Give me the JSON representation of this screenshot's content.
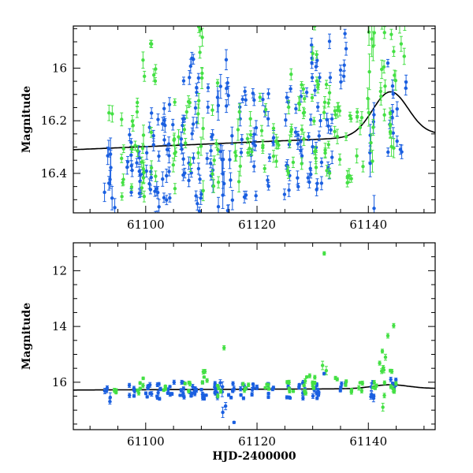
{
  "chart_data": [
    {
      "type": "scatter",
      "panel": "top",
      "title": "",
      "xlabel": "",
      "ylabel": "Magnitude",
      "xlim": [
        61087,
        61152
      ],
      "ylim": [
        16.55,
        15.84
      ],
      "y_inverted": true,
      "x_ticks": [
        61100,
        61120,
        61140
      ],
      "x_tick_labels": [
        "61100",
        "61120",
        "61140"
      ],
      "y_ticks": [
        16.0,
        16.2,
        16.4
      ],
      "y_tick_labels": [
        "16",
        "16.2",
        "16.4"
      ],
      "grid": false,
      "series": [
        {
          "name": "blue",
          "color": "#1a5fe0",
          "clusters": [
            [
              61093.0,
              16.38,
              0.12,
              5,
              0.03
            ],
            [
              61094.0,
              16.42,
              0.16,
              4,
              0.05
            ],
            [
              61097.0,
              16.4,
              0.18,
              8,
              0.02
            ],
            [
              61099.0,
              16.42,
              0.14,
              9,
              0.02
            ],
            [
              61100.5,
              16.35,
              0.3,
              10,
              0.02
            ],
            [
              61102.0,
              16.38,
              0.25,
              10,
              0.02
            ],
            [
              61103.5,
              16.4,
              0.25,
              10,
              0.02
            ],
            [
              61104.5,
              16.3,
              0.2,
              6,
              0.02
            ],
            [
              61106.5,
              16.33,
              0.3,
              10,
              0.02
            ],
            [
              61108.0,
              16.2,
              0.25,
              10,
              0.02
            ],
            [
              61109.5,
              16.3,
              0.3,
              12,
              0.02
            ],
            [
              61111.5,
              16.3,
              0.25,
              10,
              0.02
            ],
            [
              61113.5,
              16.35,
              0.3,
              10,
              0.04
            ],
            [
              61115.0,
              16.3,
              0.35,
              12,
              0.03
            ],
            [
              61117.5,
              16.33,
              0.25,
              9,
              0.02
            ],
            [
              61119.5,
              16.3,
              0.25,
              9,
              0.02
            ],
            [
              61121.5,
              16.1,
              0.1,
              4,
              0.02
            ],
            [
              61122.5,
              16.35,
              0.15,
              5,
              0.02
            ],
            [
              61125.5,
              16.25,
              0.25,
              10,
              0.02
            ],
            [
              61127.5,
              16.3,
              0.2,
              10,
              0.02
            ],
            [
              61129.5,
              16.2,
              0.3,
              12,
              0.02
            ],
            [
              61131.0,
              16.2,
              0.3,
              12,
              0.02
            ],
            [
              61133.0,
              16.1,
              0.3,
              10,
              0.02
            ],
            [
              61135.5,
              16.0,
              0.15,
              6,
              0.02
            ],
            [
              61140.5,
              16.4,
              0.25,
              6,
              0.04
            ],
            [
              61144.0,
              16.15,
              0.2,
              8,
              0.02
            ],
            [
              61145.5,
              16.25,
              0.1,
              4,
              0.02
            ],
            [
              61146.5,
              16.05,
              0.05,
              2,
              0.02
            ]
          ]
        },
        {
          "name": "green",
          "color": "#44e044",
          "clusters": [
            [
              61094.0,
              16.22,
              0.05,
              2,
              0.03
            ],
            [
              61096.0,
              16.35,
              0.2,
              6,
              0.02
            ],
            [
              61098.0,
              16.3,
              0.2,
              8,
              0.02
            ],
            [
              61099.5,
              16.25,
              0.3,
              10,
              0.03
            ],
            [
              61101.5,
              16.2,
              0.3,
              8,
              0.02
            ],
            [
              61105.5,
              16.3,
              0.2,
              8,
              0.02
            ],
            [
              61107.5,
              16.25,
              0.2,
              6,
              0.02
            ],
            [
              61110.0,
              16.1,
              0.4,
              12,
              0.03
            ],
            [
              61112.5,
              16.25,
              0.2,
              8,
              0.02
            ],
            [
              61116.5,
              16.3,
              0.15,
              6,
              0.03
            ],
            [
              61118.5,
              16.28,
              0.15,
              6,
              0.02
            ],
            [
              61121.0,
              16.25,
              0.15,
              6,
              0.02
            ],
            [
              61123.5,
              16.3,
              0.12,
              6,
              0.02
            ],
            [
              61126.0,
              16.22,
              0.2,
              8,
              0.02
            ],
            [
              61128.0,
              16.2,
              0.25,
              10,
              0.02
            ],
            [
              61130.5,
              16.1,
              0.3,
              12,
              0.02
            ],
            [
              61132.5,
              16.2,
              0.25,
              10,
              0.02
            ],
            [
              61134.5,
              16.2,
              0.2,
              8,
              0.02
            ],
            [
              61136.5,
              16.25,
              0.2,
              8,
              0.02
            ],
            [
              61138.5,
              16.3,
              0.15,
              6,
              0.02
            ],
            [
              61140.5,
              16.1,
              0.5,
              14,
              0.05
            ],
            [
              61142.5,
              16.0,
              0.2,
              8,
              0.03
            ],
            [
              61144.5,
              16.1,
              0.25,
              10,
              0.03
            ],
            [
              61146.0,
              15.92,
              0.1,
              4,
              0.03
            ]
          ]
        }
      ],
      "model": {
        "baseline": 16.31,
        "peak_x": 61144.0,
        "peak_y": 16.09,
        "width": 3.2
      }
    },
    {
      "type": "scatter",
      "panel": "bottom",
      "title": "",
      "xlabel": "HJD-2400000",
      "ylabel": "Magnitude",
      "xlim": [
        61087,
        61152
      ],
      "ylim": [
        17.7,
        11.0
      ],
      "y_inverted": true,
      "x_ticks": [
        61100,
        61120,
        61140
      ],
      "x_tick_labels": [
        "61100",
        "61120",
        "61140"
      ],
      "y_ticks": [
        12,
        14,
        16
      ],
      "y_tick_labels": [
        "12",
        "14",
        "16"
      ],
      "grid": false,
      "series": [
        {
          "name": "blue",
          "color": "#1a5fe0",
          "clusters": [
            [
              61093.0,
              16.35,
              0.15,
              3,
              0.1
            ],
            [
              61094.0,
              16.55,
              0.2,
              2,
              0.15
            ],
            [
              61097.5,
              16.3,
              0.2,
              6,
              0.06
            ],
            [
              61100.5,
              16.3,
              0.25,
              8,
              0.06
            ],
            [
              61102.5,
              16.3,
              0.3,
              8,
              0.06
            ],
            [
              61104.5,
              16.2,
              0.3,
              6,
              0.06
            ],
            [
              61106.5,
              16.3,
              0.3,
              8,
              0.06
            ],
            [
              61108.5,
              16.25,
              0.3,
              8,
              0.06
            ],
            [
              61110.5,
              16.3,
              0.3,
              8,
              0.06
            ],
            [
              61112.5,
              16.3,
              0.3,
              8,
              0.06
            ],
            [
              61114.0,
              16.6,
              0.6,
              5,
              0.15
            ],
            [
              61115.5,
              16.3,
              0.3,
              6,
              0.06
            ],
            [
              61116.0,
              17.45,
              0.02,
              1,
              0.05
            ],
            [
              61117.5,
              16.3,
              0.3,
              6,
              0.06
            ],
            [
              61119.5,
              16.3,
              0.3,
              6,
              0.06
            ],
            [
              61122.5,
              16.3,
              0.3,
              6,
              0.06
            ],
            [
              61125.5,
              16.3,
              0.3,
              6,
              0.06
            ],
            [
              61128.0,
              16.3,
              0.3,
              8,
              0.06
            ],
            [
              61130.5,
              16.3,
              0.3,
              10,
              0.06
            ],
            [
              61131.5,
              15.65,
              0.05,
              1,
              0.05
            ],
            [
              61135.5,
              16.2,
              0.2,
              4,
              0.06
            ],
            [
              61141.0,
              16.3,
              0.3,
              6,
              0.1
            ],
            [
              61144.5,
              16.1,
              0.2,
              6,
              0.06
            ]
          ]
        },
        {
          "name": "green",
          "color": "#44e044",
          "clusters": [
            [
              61094.5,
              16.2,
              0.2,
              3,
              0.06
            ],
            [
              61099.0,
              16.1,
              0.3,
              6,
              0.06
            ],
            [
              61103.0,
              16.2,
              0.2,
              4,
              0.06
            ],
            [
              61107.5,
              16.2,
              0.2,
              4,
              0.06
            ],
            [
              61110.5,
              15.9,
              0.3,
              5,
              0.06
            ],
            [
              61114.0,
              14.75,
              0.02,
              1,
              0.06
            ],
            [
              61113.5,
              16.2,
              0.3,
              4,
              0.06
            ],
            [
              61118.0,
              16.2,
              0.2,
              4,
              0.06
            ],
            [
              61122.0,
              16.2,
              0.2,
              4,
              0.06
            ],
            [
              61126.0,
              16.1,
              0.25,
              5,
              0.06
            ],
            [
              61128.5,
              16.1,
              0.3,
              6,
              0.06
            ],
            [
              61130.0,
              16.0,
              0.3,
              6,
              0.06
            ],
            [
              61132.0,
              11.4,
              0.03,
              1,
              0.08
            ],
            [
              61132.2,
              15.5,
              0.3,
              2,
              0.12
            ],
            [
              61134.0,
              15.9,
              0.1,
              2,
              0.06
            ],
            [
              61136.5,
              16.1,
              0.3,
              5,
              0.06
            ],
            [
              61138.5,
              16.2,
              0.2,
              4,
              0.06
            ],
            [
              61141.0,
              16.2,
              0.2,
              4,
              0.06
            ],
            [
              61142.5,
              15.6,
              0.9,
              8,
              0.1
            ],
            [
              61143.0,
              16.9,
              0.05,
              1,
              0.1
            ],
            [
              61144.5,
              15.9,
              0.5,
              7,
              0.08
            ],
            [
              61144.5,
              14.0,
              0.05,
              1,
              0.06
            ],
            [
              61144.0,
              14.3,
              0.05,
              1,
              0.06
            ]
          ]
        }
      ],
      "model": {
        "baseline": 16.28,
        "peak_x": 61144.0,
        "peak_y": 16.09,
        "width": 3.2
      }
    }
  ]
}
